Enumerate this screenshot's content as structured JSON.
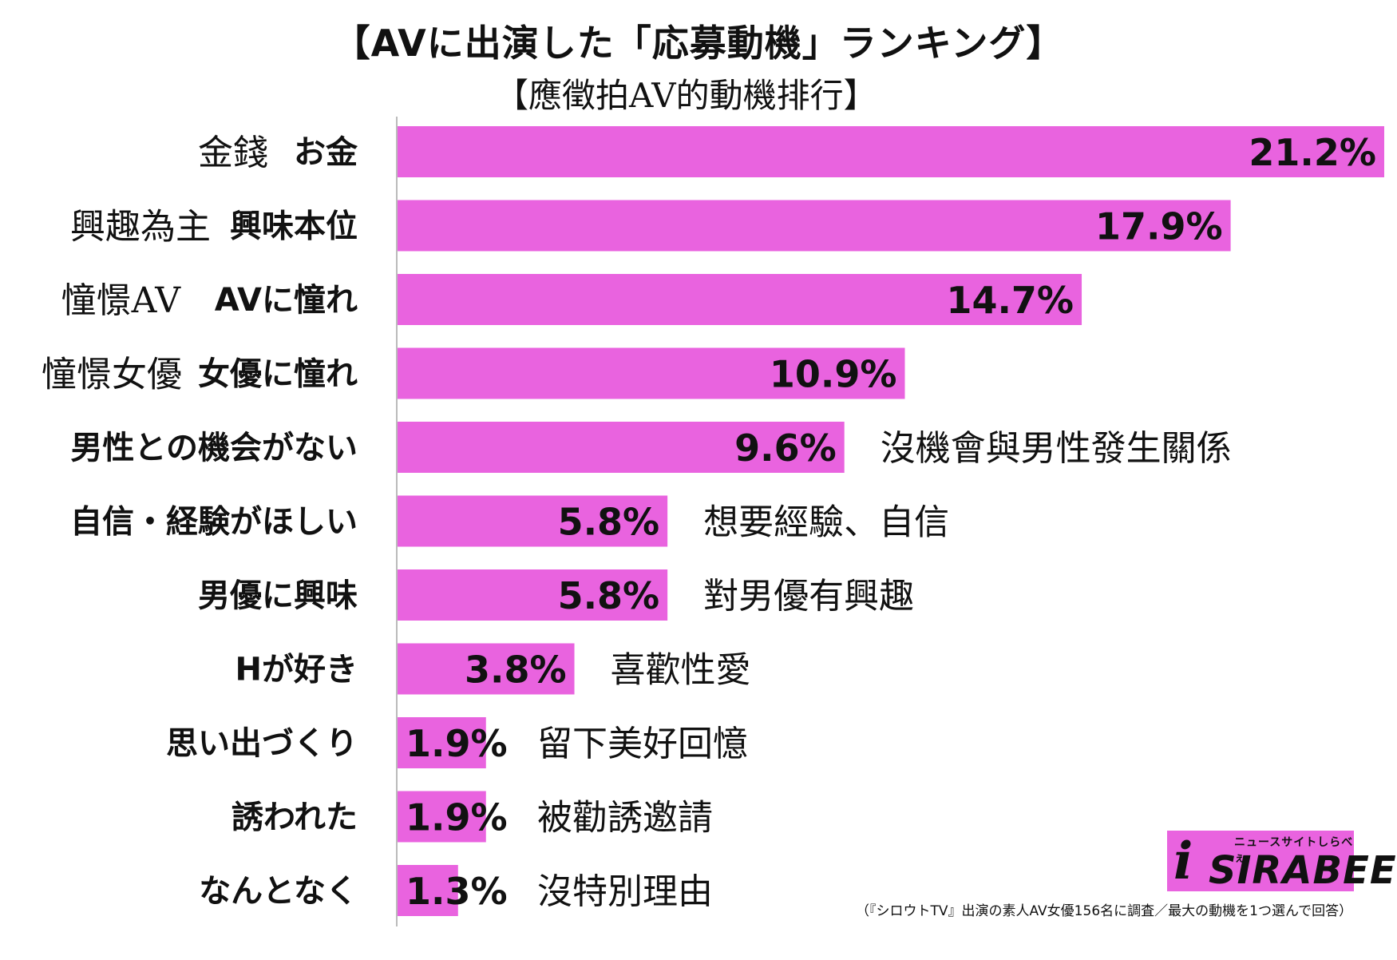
{
  "title": "【AVに出演した「応募動機」ランキング】",
  "subtitle": "【應徵拍AV的動機排行】",
  "chart_data": {
    "type": "bar",
    "orientation": "horizontal",
    "bar_color": "#e963df",
    "categories": [
      "お金",
      "興味本位",
      "AVに憧れ",
      "女優に憧れ",
      "男性との機会がない",
      "自信・経験がほしい",
      "男優に興味",
      "Hが好き",
      "思い出づくり",
      "誘われた",
      "なんとなく"
    ],
    "category_translations": [
      "金錢",
      "興趣為主",
      "憧憬AV",
      "憧憬女優",
      "沒機會與男性發生關係",
      "想要經驗、自信",
      "對男優有興趣",
      "喜歡性愛",
      "留下美好回憶",
      "被勸誘邀請",
      "沒特別理由"
    ],
    "values": [
      21.2,
      17.9,
      14.7,
      10.9,
      9.6,
      5.8,
      5.8,
      3.8,
      1.9,
      1.9,
      1.3
    ],
    "value_labels": [
      "21.2%",
      "17.9%",
      "14.7%",
      "10.9%",
      "9.6%",
      "5.8%",
      "5.8%",
      "3.8%",
      "1.9%",
      "1.9%",
      "1.3%"
    ],
    "xlim": [
      0,
      21.2
    ],
    "grid": false
  },
  "logo": {
    "tagline": "ニュースサイトしらべぇ",
    "mark": "i",
    "name": "SIRABEE"
  },
  "footnote": "（『シロウトTV』出演の素人AV女優156名に調査／最大の動機を1つ選んで回答）"
}
